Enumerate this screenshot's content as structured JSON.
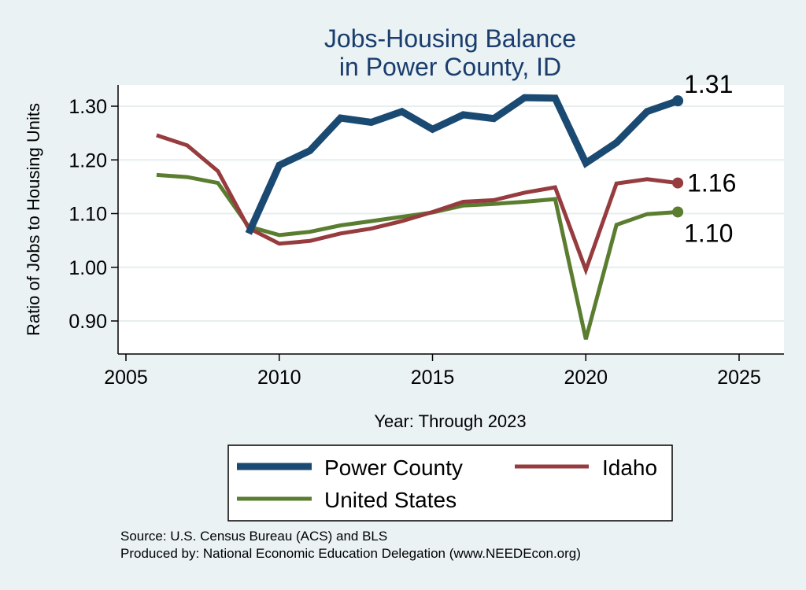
{
  "chart_data": {
    "type": "line",
    "title": [
      "Jobs-Housing Balance",
      "in Power County, ID"
    ],
    "xlabel": "Year: Through 2023",
    "ylabel": "Ratio of Jobs to Housing Units",
    "xlim": [
      2005,
      2025
    ],
    "ylim": [
      0.85,
      1.34
    ],
    "x_ticks": [
      2005,
      2010,
      2015,
      2020,
      2025
    ],
    "y_ticks": [
      0.9,
      1.0,
      1.1,
      1.2,
      1.3
    ],
    "y_tick_labels": [
      "0.90",
      "1.00",
      "1.10",
      "1.20",
      "1.30"
    ],
    "grid": true,
    "legend_position": "bottom",
    "series": [
      {
        "name": "Power County",
        "color": "#1a4a72",
        "x": [
          2009,
          2010,
          2011,
          2012,
          2013,
          2014,
          2015,
          2016,
          2017,
          2018,
          2019,
          2020,
          2021,
          2022,
          2023
        ],
        "values": [
          1.063,
          1.19,
          1.217,
          1.278,
          1.27,
          1.29,
          1.257,
          1.284,
          1.277,
          1.316,
          1.315,
          1.194,
          1.232,
          1.29,
          1.31
        ],
        "end_label": "1.31"
      },
      {
        "name": "Idaho",
        "color": "#963c3e",
        "x": [
          2006,
          2007,
          2008,
          2009,
          2010,
          2011,
          2012,
          2013,
          2014,
          2015,
          2016,
          2017,
          2018,
          2019,
          2020,
          2021,
          2022,
          2023
        ],
        "values": [
          1.246,
          1.227,
          1.179,
          1.073,
          1.044,
          1.049,
          1.063,
          1.072,
          1.086,
          1.103,
          1.122,
          1.125,
          1.139,
          1.149,
          0.995,
          1.156,
          1.164,
          1.157
        ],
        "end_label": "1.16"
      },
      {
        "name": "United States",
        "color": "#5a7d30",
        "x": [
          2006,
          2007,
          2008,
          2009,
          2010,
          2011,
          2012,
          2013,
          2014,
          2015,
          2016,
          2017,
          2018,
          2019,
          2020,
          2021,
          2022,
          2023
        ],
        "values": [
          1.172,
          1.168,
          1.157,
          1.076,
          1.06,
          1.066,
          1.078,
          1.086,
          1.094,
          1.102,
          1.115,
          1.118,
          1.122,
          1.127,
          0.866,
          1.079,
          1.099,
          1.103
        ],
        "end_label": "1.10"
      }
    ],
    "legend": [
      "Power County",
      "Idaho",
      "United States"
    ],
    "notes": [
      "Source: U.S. Census Bureau (ACS) and BLS",
      "Produced by: National Economic Education Delegation (www.NEEDEcon.org)"
    ]
  }
}
